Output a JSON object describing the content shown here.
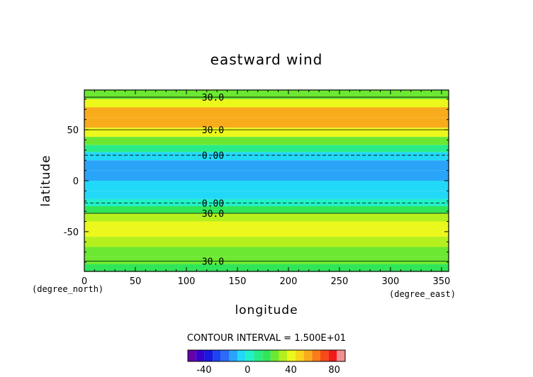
{
  "chart_data": {
    "type": "heatmap",
    "title": "eastward wind",
    "xlabel": "longitude",
    "ylabel": "latitude",
    "x_unit": "(degree_east)",
    "y_unit": "(degree_north)",
    "xlim": [
      0,
      357
    ],
    "ylim": [
      -89,
      89
    ],
    "x_ticks": [
      "0",
      "50",
      "100",
      "150",
      "200",
      "250",
      "300",
      "350"
    ],
    "y_ticks": [
      "-50",
      "0",
      "50"
    ],
    "contour_interval_text": "CONTOUR INTERVAL = 1.500E+01",
    "contour_labels": [
      {
        "text": "30.0",
        "x": 126,
        "y": 82
      },
      {
        "text": "30.0",
        "x": 126,
        "y": 50
      },
      {
        "text": "0.00",
        "x": 126,
        "y": 25
      },
      {
        "text": "0.00",
        "x": 126,
        "y": -22
      },
      {
        "text": "30.0",
        "x": 126,
        "y": -32
      },
      {
        "text": "30.0",
        "x": 126,
        "y": -79
      }
    ],
    "colorbar": {
      "min": -55,
      "max": 90,
      "step": 5,
      "ticks": [
        "-40",
        "0",
        "40",
        "80"
      ],
      "colors": [
        "#6600a8",
        "#3800cc",
        "#1818e0",
        "#1c44f0",
        "#2a6cf6",
        "#2aa4f8",
        "#22d8f8",
        "#22f0c8",
        "#28ec88",
        "#30e658",
        "#6ce832",
        "#b4f01e",
        "#ecf81c",
        "#f8d41c",
        "#f8ac1c",
        "#f87c18",
        "#f84a18",
        "#f01c1c",
        "#f09090"
      ]
    },
    "bands": [
      {
        "lat": 89,
        "value": 20
      },
      {
        "lat": 80,
        "value": 30
      },
      {
        "lat": 72,
        "value": 45
      },
      {
        "lat": 62,
        "value": 65
      },
      {
        "lat": 52,
        "value": 45
      },
      {
        "lat": 43,
        "value": 30
      },
      {
        "lat": 35,
        "value": 15
      },
      {
        "lat": 28,
        "value": 3
      },
      {
        "lat": 20,
        "value": -8
      },
      {
        "lat": 10,
        "value": -12
      },
      {
        "lat": 0,
        "value": -8
      },
      {
        "lat": -10,
        "value": -6
      },
      {
        "lat": -18,
        "value": 0
      },
      {
        "lat": -25,
        "value": 12
      },
      {
        "lat": -32,
        "value": 28
      },
      {
        "lat": -40,
        "value": 38
      },
      {
        "lat": -47,
        "value": 45
      },
      {
        "lat": -55,
        "value": 35
      },
      {
        "lat": -65,
        "value": 25
      },
      {
        "lat": -75,
        "value": 18
      },
      {
        "lat": -82,
        "value": 25
      },
      {
        "lat": -89,
        "value": 15
      }
    ]
  }
}
